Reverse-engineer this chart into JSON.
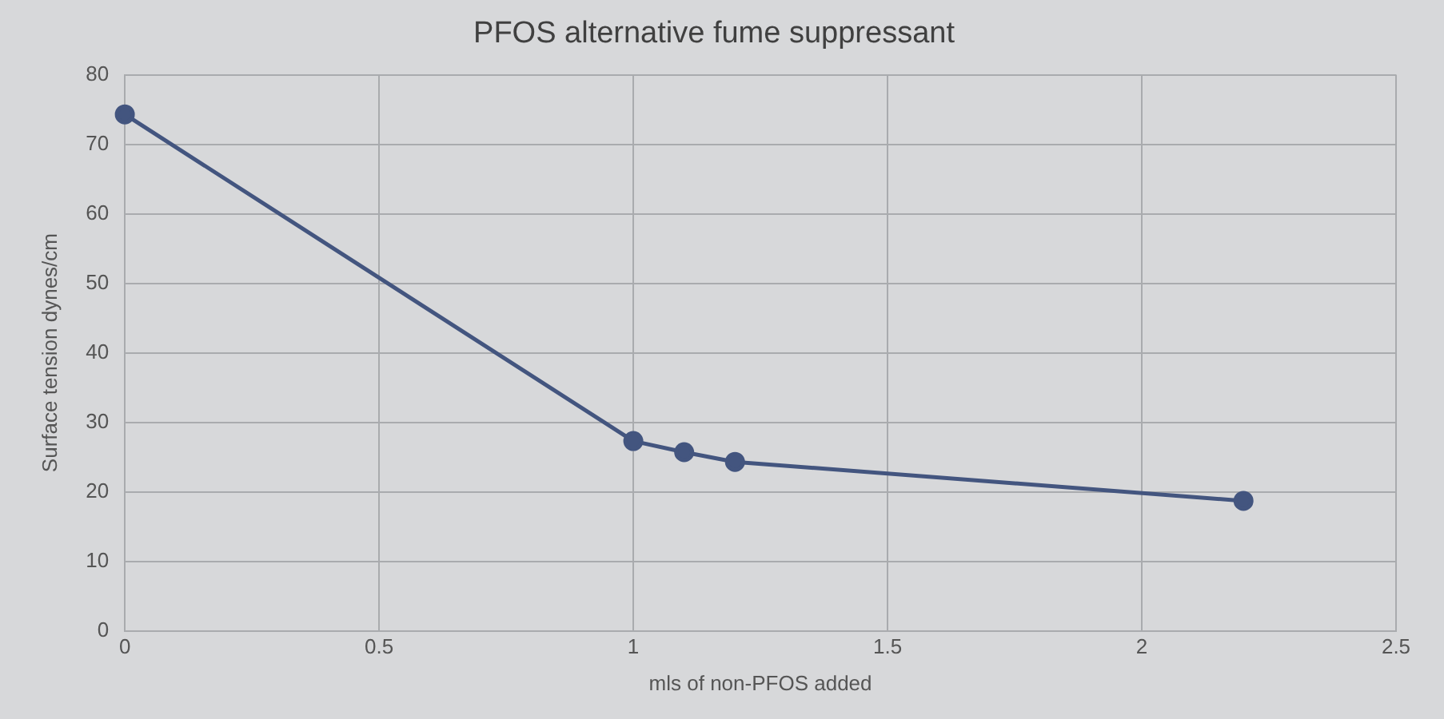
{
  "chart_data": {
    "type": "line",
    "title": "PFOS alternative fume suppressant",
    "xlabel": "mls of non-PFOS added",
    "ylabel": "Surface tension dynes/cm",
    "x": [
      0,
      1,
      1.1,
      1.2,
      2.2
    ],
    "series": [
      {
        "color": "#43557f",
        "values": [
          74.3,
          27.3,
          25.7,
          24.3,
          18.7
        ]
      }
    ],
    "xlim": [
      0,
      2.5
    ],
    "xticks": [
      0,
      0.5,
      1,
      1.5,
      2,
      2.5
    ],
    "ylim": [
      0,
      80
    ],
    "yticks": [
      0,
      10,
      20,
      30,
      40,
      50,
      60,
      70,
      80
    ],
    "grid": true,
    "legend": false,
    "marker": "circle",
    "line_style": "solid"
  }
}
